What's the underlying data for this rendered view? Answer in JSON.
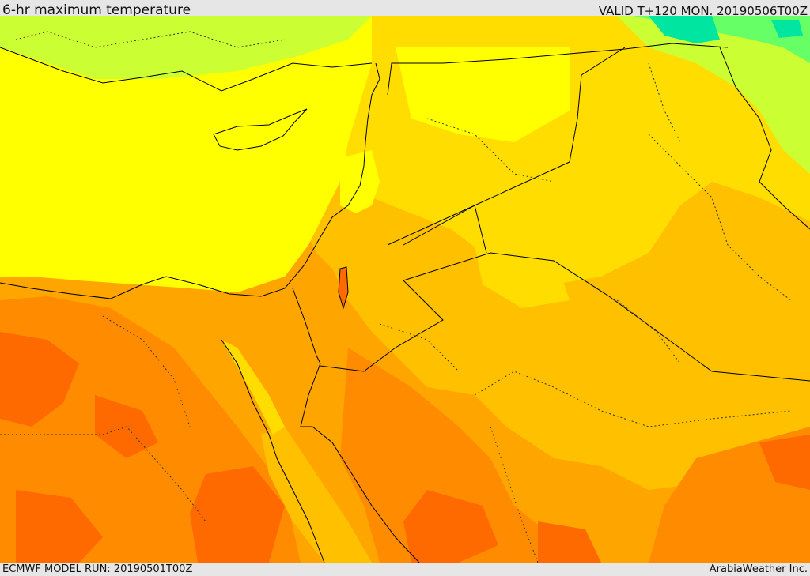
{
  "header": {
    "title": "6-hr maximum temperature",
    "valid": "VALID T+120 MON. 20190506T00Z"
  },
  "footer": {
    "model_run": "ECMWF MODEL RUN: 20190501T00Z",
    "credit": "ArabiaWeather Inc."
  },
  "colors": {
    "sea": "#ffff00",
    "warm_light": "#ffdd00",
    "warm": "#ffc000",
    "hot": "#ffa500",
    "hotter": "#ff8c00",
    "hottest": "#ff6a00",
    "cool_light": "#ccff33",
    "cool": "#66ff66",
    "cold": "#00e6a0",
    "border": "#000000"
  }
}
